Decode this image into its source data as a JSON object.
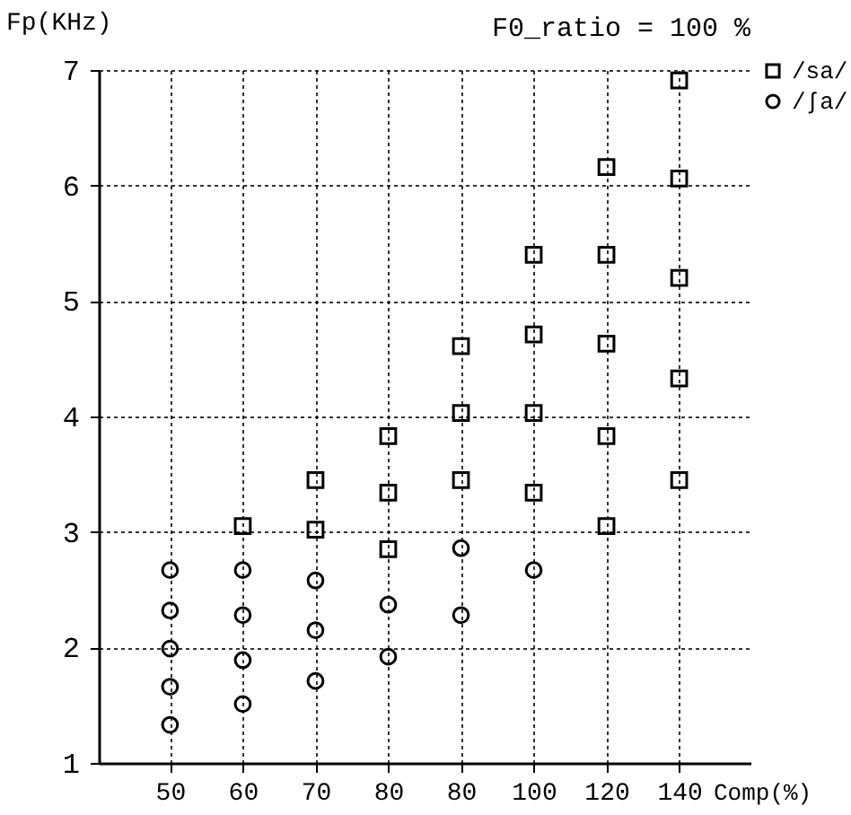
{
  "chart_data": {
    "type": "scatter",
    "title": "F0_ratio = 100 %",
    "xlabel": "Comp(%)",
    "ylabel": "Fp(KHz)",
    "categories": [
      "50",
      "60",
      "70",
      "80",
      "80",
      "100",
      "120",
      "140"
    ],
    "ylim": [
      1,
      7
    ],
    "yticks": [
      1,
      2,
      3,
      4,
      5,
      6,
      7
    ],
    "grid": true,
    "legend": "top right",
    "series": [
      {
        "name": "/sa/",
        "color": "#000000",
        "marker": "square",
        "values": [
          null,
          3.05,
          3.45,
          3.83,
          4.61,
          5.4,
          6.16,
          6.91
        ]
      },
      {
        "color": "#000000",
        "marker": "square",
        "values": [
          null,
          null,
          3.02,
          3.34,
          4.03,
          4.71,
          5.4,
          6.06
        ]
      },
      {
        "color": "#000000",
        "marker": "square",
        "values": [
          null,
          null,
          null,
          2.85,
          3.45,
          4.03,
          4.63,
          5.2
        ]
      },
      {
        "color": "#000000",
        "marker": "square",
        "values": [
          null,
          null,
          null,
          null,
          null,
          3.34,
          3.83,
          4.33
        ]
      },
      {
        "color": "#000000",
        "marker": "square",
        "values": [
          null,
          null,
          null,
          null,
          null,
          null,
          3.05,
          3.45
        ]
      },
      {
        "name": "/ʃa/",
        "color": "#000000",
        "marker": "circle",
        "values": [
          2.67,
          2.67,
          2.58,
          2.37,
          2.86,
          2.67,
          null,
          null
        ]
      },
      {
        "color": "#000000",
        "marker": "circle",
        "values": [
          2.32,
          2.28,
          2.15,
          1.92,
          2.28,
          null,
          null,
          null
        ]
      },
      {
        "color": "#000000",
        "marker": "circle",
        "values": [
          1.99,
          1.89,
          1.71,
          null,
          null,
          null,
          null,
          null
        ]
      },
      {
        "color": "#000000",
        "marker": "circle",
        "values": [
          1.66,
          1.51,
          null,
          null,
          null,
          null,
          null,
          null
        ]
      },
      {
        "color": "#000000",
        "marker": "circle",
        "values": [
          1.33,
          null,
          null,
          null,
          null,
          null,
          null,
          null
        ]
      }
    ]
  }
}
